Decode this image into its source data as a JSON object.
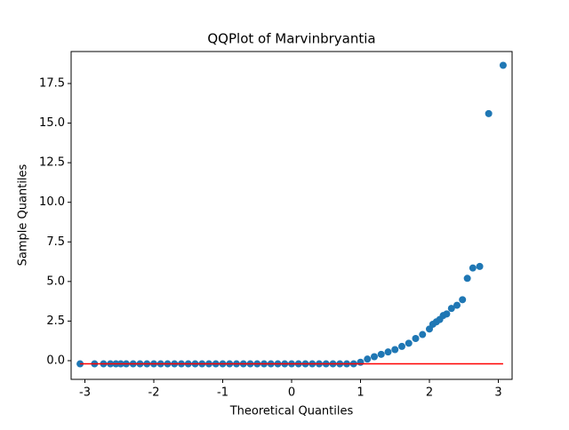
{
  "chart_data": {
    "type": "scatter",
    "title": "QQPlot of Marvinbryantia",
    "xlabel": "Theoretical Quantiles",
    "ylabel": "Sample Quantiles",
    "xlim": [
      -3.2,
      3.2
    ],
    "ylim": [
      -1.18,
      19.52
    ],
    "xticks": [
      -3,
      -2,
      -1,
      0,
      1,
      2,
      3
    ],
    "yticks": [
      {
        "value": 0,
        "label": "0.0"
      },
      2.5,
      {
        "value": 5,
        "label": "5.0"
      },
      7.5,
      {
        "value": 10,
        "label": "10.0"
      },
      12.5,
      {
        "value": 15,
        "label": "15.0"
      },
      17.5
    ],
    "series": [
      {
        "type": "scatter",
        "color": "#1f77b4",
        "x": [
          -3.07,
          -2.86,
          -2.73,
          -2.63,
          -2.55,
          -2.48,
          -2.4,
          -2.3,
          -2.2,
          -2.1,
          -2.0,
          -1.9,
          -1.8,
          -1.7,
          -1.6,
          -1.5,
          -1.4,
          -1.3,
          -1.2,
          -1.1,
          -1.0,
          -0.9,
          -0.8,
          -0.7,
          -0.6,
          -0.5,
          -0.4,
          -0.3,
          -0.2,
          -0.1,
          0,
          0.1,
          0.2,
          0.3,
          0.4,
          0.5,
          0.6,
          0.7,
          0.8,
          0.9,
          1.0,
          1.1,
          1.2,
          1.3,
          1.4,
          1.5,
          1.6,
          1.7,
          1.8,
          1.9,
          2.0,
          2.05,
          2.1,
          2.15,
          2.2,
          2.25,
          2.32,
          2.4,
          2.48,
          2.55,
          2.63,
          2.73,
          2.86,
          3.07
        ],
        "values": [
          -0.2,
          -0.2,
          -0.2,
          -0.2,
          -0.2,
          -0.2,
          -0.2,
          -0.2,
          -0.2,
          -0.2,
          -0.2,
          -0.2,
          -0.2,
          -0.2,
          -0.2,
          -0.2,
          -0.2,
          -0.2,
          -0.2,
          -0.2,
          -0.2,
          -0.2,
          -0.2,
          -0.2,
          -0.2,
          -0.2,
          -0.2,
          -0.2,
          -0.2,
          -0.2,
          -0.2,
          -0.2,
          -0.2,
          -0.2,
          -0.2,
          -0.2,
          -0.2,
          -0.2,
          -0.2,
          -0.2,
          -0.1,
          0.1,
          0.25,
          0.4,
          0.55,
          0.7,
          0.9,
          1.1,
          1.4,
          1.65,
          2.0,
          2.3,
          2.45,
          2.6,
          2.85,
          2.95,
          3.3,
          3.5,
          3.85,
          5.2,
          5.85,
          5.95,
          15.6,
          18.65
        ]
      },
      {
        "type": "line",
        "color": "#ff0000",
        "x": [
          -3.07,
          3.07
        ],
        "values": [
          -0.2,
          -0.2
        ]
      }
    ]
  }
}
